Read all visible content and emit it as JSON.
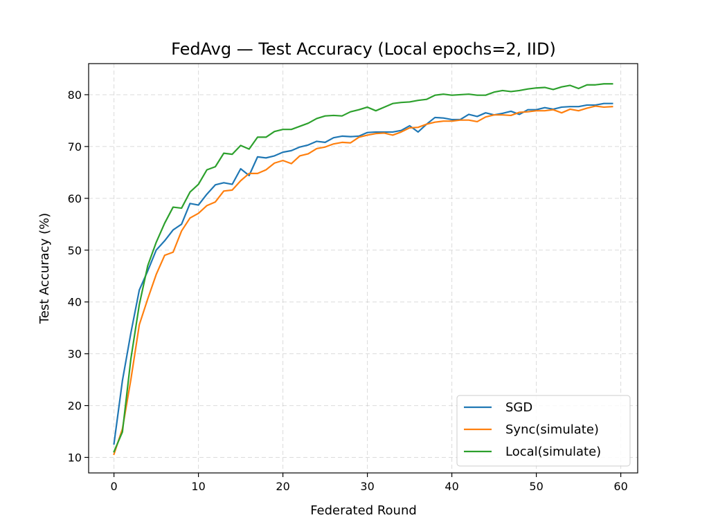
{
  "chart_data": {
    "type": "line",
    "title": "FedAvg — Test Accuracy (Local epochs=2, IID)",
    "xlabel": "Federated Round",
    "ylabel": "Test Accuracy (%)",
    "xlim": [
      -3,
      62
    ],
    "ylim": [
      7,
      86
    ],
    "xticks": [
      0,
      10,
      20,
      30,
      40,
      50,
      60
    ],
    "yticks": [
      10,
      20,
      30,
      40,
      50,
      60,
      70,
      80
    ],
    "grid": true,
    "legend_position": "lower-right",
    "x": [
      0,
      1,
      2,
      3,
      4,
      5,
      6,
      7,
      8,
      9,
      10,
      11,
      12,
      13,
      14,
      15,
      16,
      17,
      18,
      19,
      20,
      21,
      22,
      23,
      24,
      25,
      26,
      27,
      28,
      29,
      30,
      31,
      32,
      33,
      34,
      35,
      36,
      37,
      38,
      39,
      40,
      41,
      42,
      43,
      44,
      45,
      46,
      47,
      48,
      49,
      50,
      51,
      52,
      53,
      54,
      55,
      56,
      57,
      58,
      59
    ],
    "series": [
      {
        "name": "SGD",
        "color": "#1f77b4",
        "values": [
          12.6,
          24.8,
          34.0,
          42.3,
          46.0,
          50.0,
          51.8,
          53.9,
          55.0,
          59.0,
          58.7,
          60.8,
          62.6,
          63.0,
          62.7,
          65.7,
          64.4,
          68.0,
          67.8,
          68.2,
          68.9,
          69.2,
          69.9,
          70.3,
          71.0,
          70.8,
          71.7,
          72.0,
          71.9,
          72.0,
          72.7,
          72.8,
          72.8,
          72.8,
          73.1,
          74.0,
          72.8,
          74.3,
          75.6,
          75.5,
          75.2,
          75.2,
          76.2,
          75.8,
          76.5,
          76.1,
          76.4,
          76.8,
          76.2,
          77.1,
          77.1,
          77.5,
          77.2,
          77.6,
          77.7,
          77.7,
          78.0,
          78.0,
          78.3,
          78.3
        ]
      },
      {
        "name": "Sync(simulate)",
        "color": "#ff7f0e",
        "values": [
          10.6,
          15.5,
          25.0,
          35.6,
          40.6,
          45.3,
          49.0,
          49.6,
          53.7,
          56.2,
          57.1,
          58.6,
          59.3,
          61.4,
          61.6,
          63.4,
          64.8,
          64.8,
          65.5,
          66.8,
          67.3,
          66.7,
          68.2,
          68.6,
          69.6,
          69.9,
          70.5,
          70.8,
          70.7,
          71.8,
          72.2,
          72.5,
          72.6,
          72.2,
          72.8,
          73.6,
          73.7,
          74.3,
          74.7,
          74.9,
          74.9,
          75.1,
          75.1,
          74.8,
          75.7,
          76.1,
          76.1,
          76.0,
          76.6,
          76.7,
          76.9,
          76.9,
          77.1,
          76.5,
          77.2,
          76.9,
          77.4,
          77.8,
          77.6,
          77.7
        ]
      },
      {
        "name": "Local(simulate)",
        "color": "#2ca02c",
        "values": [
          11.1,
          14.9,
          29.0,
          39.5,
          47.0,
          51.5,
          55.2,
          58.3,
          58.1,
          61.2,
          62.7,
          65.5,
          66.1,
          68.7,
          68.5,
          70.2,
          69.5,
          71.8,
          71.8,
          72.9,
          73.3,
          73.3,
          73.9,
          74.5,
          75.4,
          75.9,
          76.0,
          75.9,
          76.7,
          77.1,
          77.6,
          76.9,
          77.6,
          78.3,
          78.5,
          78.6,
          78.9,
          79.1,
          79.9,
          80.1,
          79.9,
          80.0,
          80.1,
          79.9,
          79.9,
          80.5,
          80.8,
          80.6,
          80.8,
          81.1,
          81.3,
          81.4,
          81.0,
          81.5,
          81.8,
          81.2,
          81.9,
          81.9,
          82.1,
          82.1
        ]
      }
    ]
  }
}
